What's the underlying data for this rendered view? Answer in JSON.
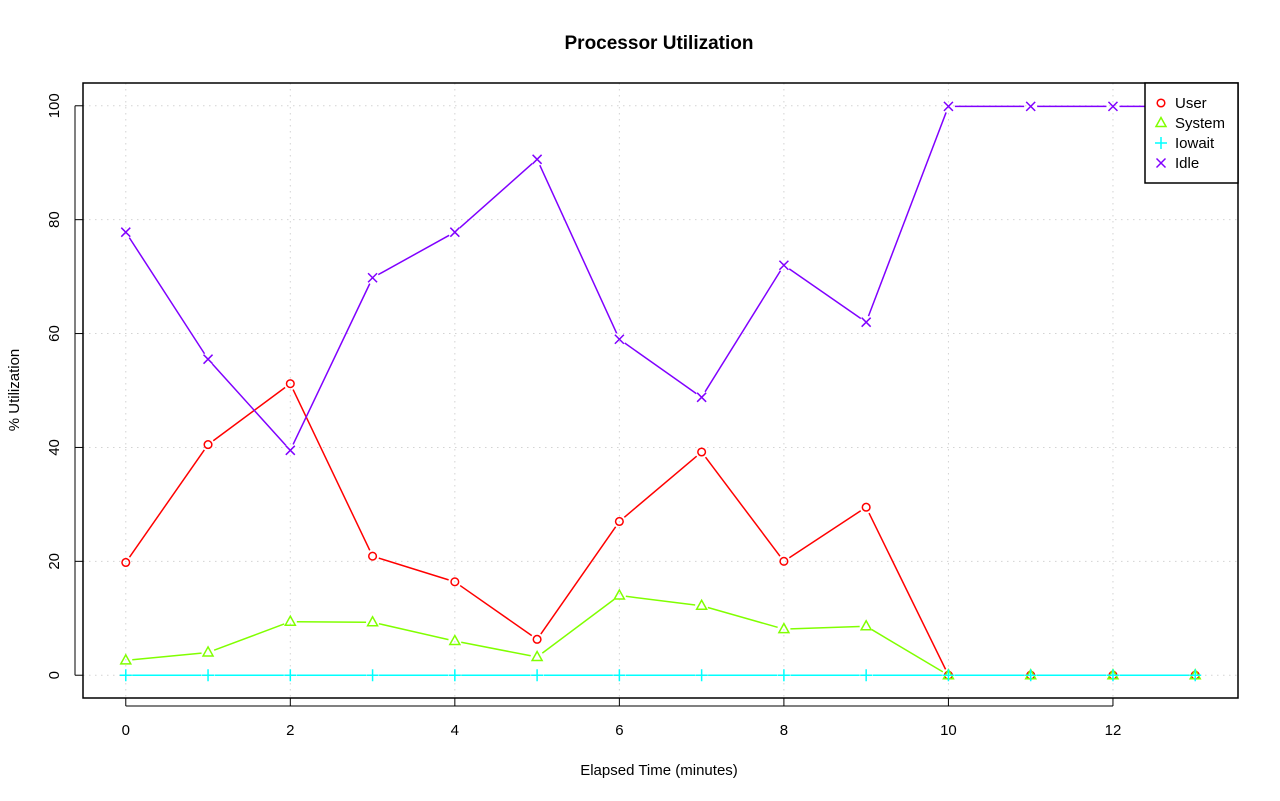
{
  "chart_data": {
    "type": "line",
    "title": "Processor Utilization",
    "xlabel": "Elapsed Time (minutes)",
    "ylabel": "% Utilization",
    "x": [
      0,
      1,
      2,
      3,
      4,
      5,
      6,
      7,
      8,
      9,
      10,
      11,
      12,
      13
    ],
    "xlim": [
      -0.52,
      13.52
    ],
    "ylim": [
      -4,
      104
    ],
    "xticks": [
      "0",
      "2",
      "4",
      "6",
      "8",
      "10",
      "12"
    ],
    "yticks": [
      "0",
      "20",
      "40",
      "60",
      "80",
      "100"
    ],
    "grid": true,
    "legend_position": "top-right",
    "series": [
      {
        "name": "User",
        "color": "#ff0000",
        "marker": "circle",
        "values": [
          19.8,
          40.5,
          51.2,
          20.9,
          16.4,
          6.3,
          27.0,
          39.2,
          20.0,
          29.5,
          0,
          0,
          0,
          0
        ]
      },
      {
        "name": "System",
        "color": "#80ff00",
        "marker": "triangle",
        "values": [
          2.6,
          4.0,
          9.4,
          9.3,
          6.0,
          3.2,
          14.0,
          12.2,
          8.1,
          8.6,
          0,
          0,
          0,
          0
        ]
      },
      {
        "name": "Iowait",
        "color": "#00ffff",
        "marker": "plus",
        "values": [
          0,
          0,
          0,
          0,
          0,
          0,
          0,
          0,
          0,
          0,
          0,
          0,
          0,
          0
        ]
      },
      {
        "name": "Idle",
        "color": "#8000ff",
        "marker": "cross",
        "values": [
          77.8,
          55.5,
          39.5,
          69.8,
          77.8,
          90.6,
          59.0,
          48.8,
          72.0,
          62.0,
          99.9,
          99.9,
          99.9,
          99.9
        ]
      }
    ]
  }
}
